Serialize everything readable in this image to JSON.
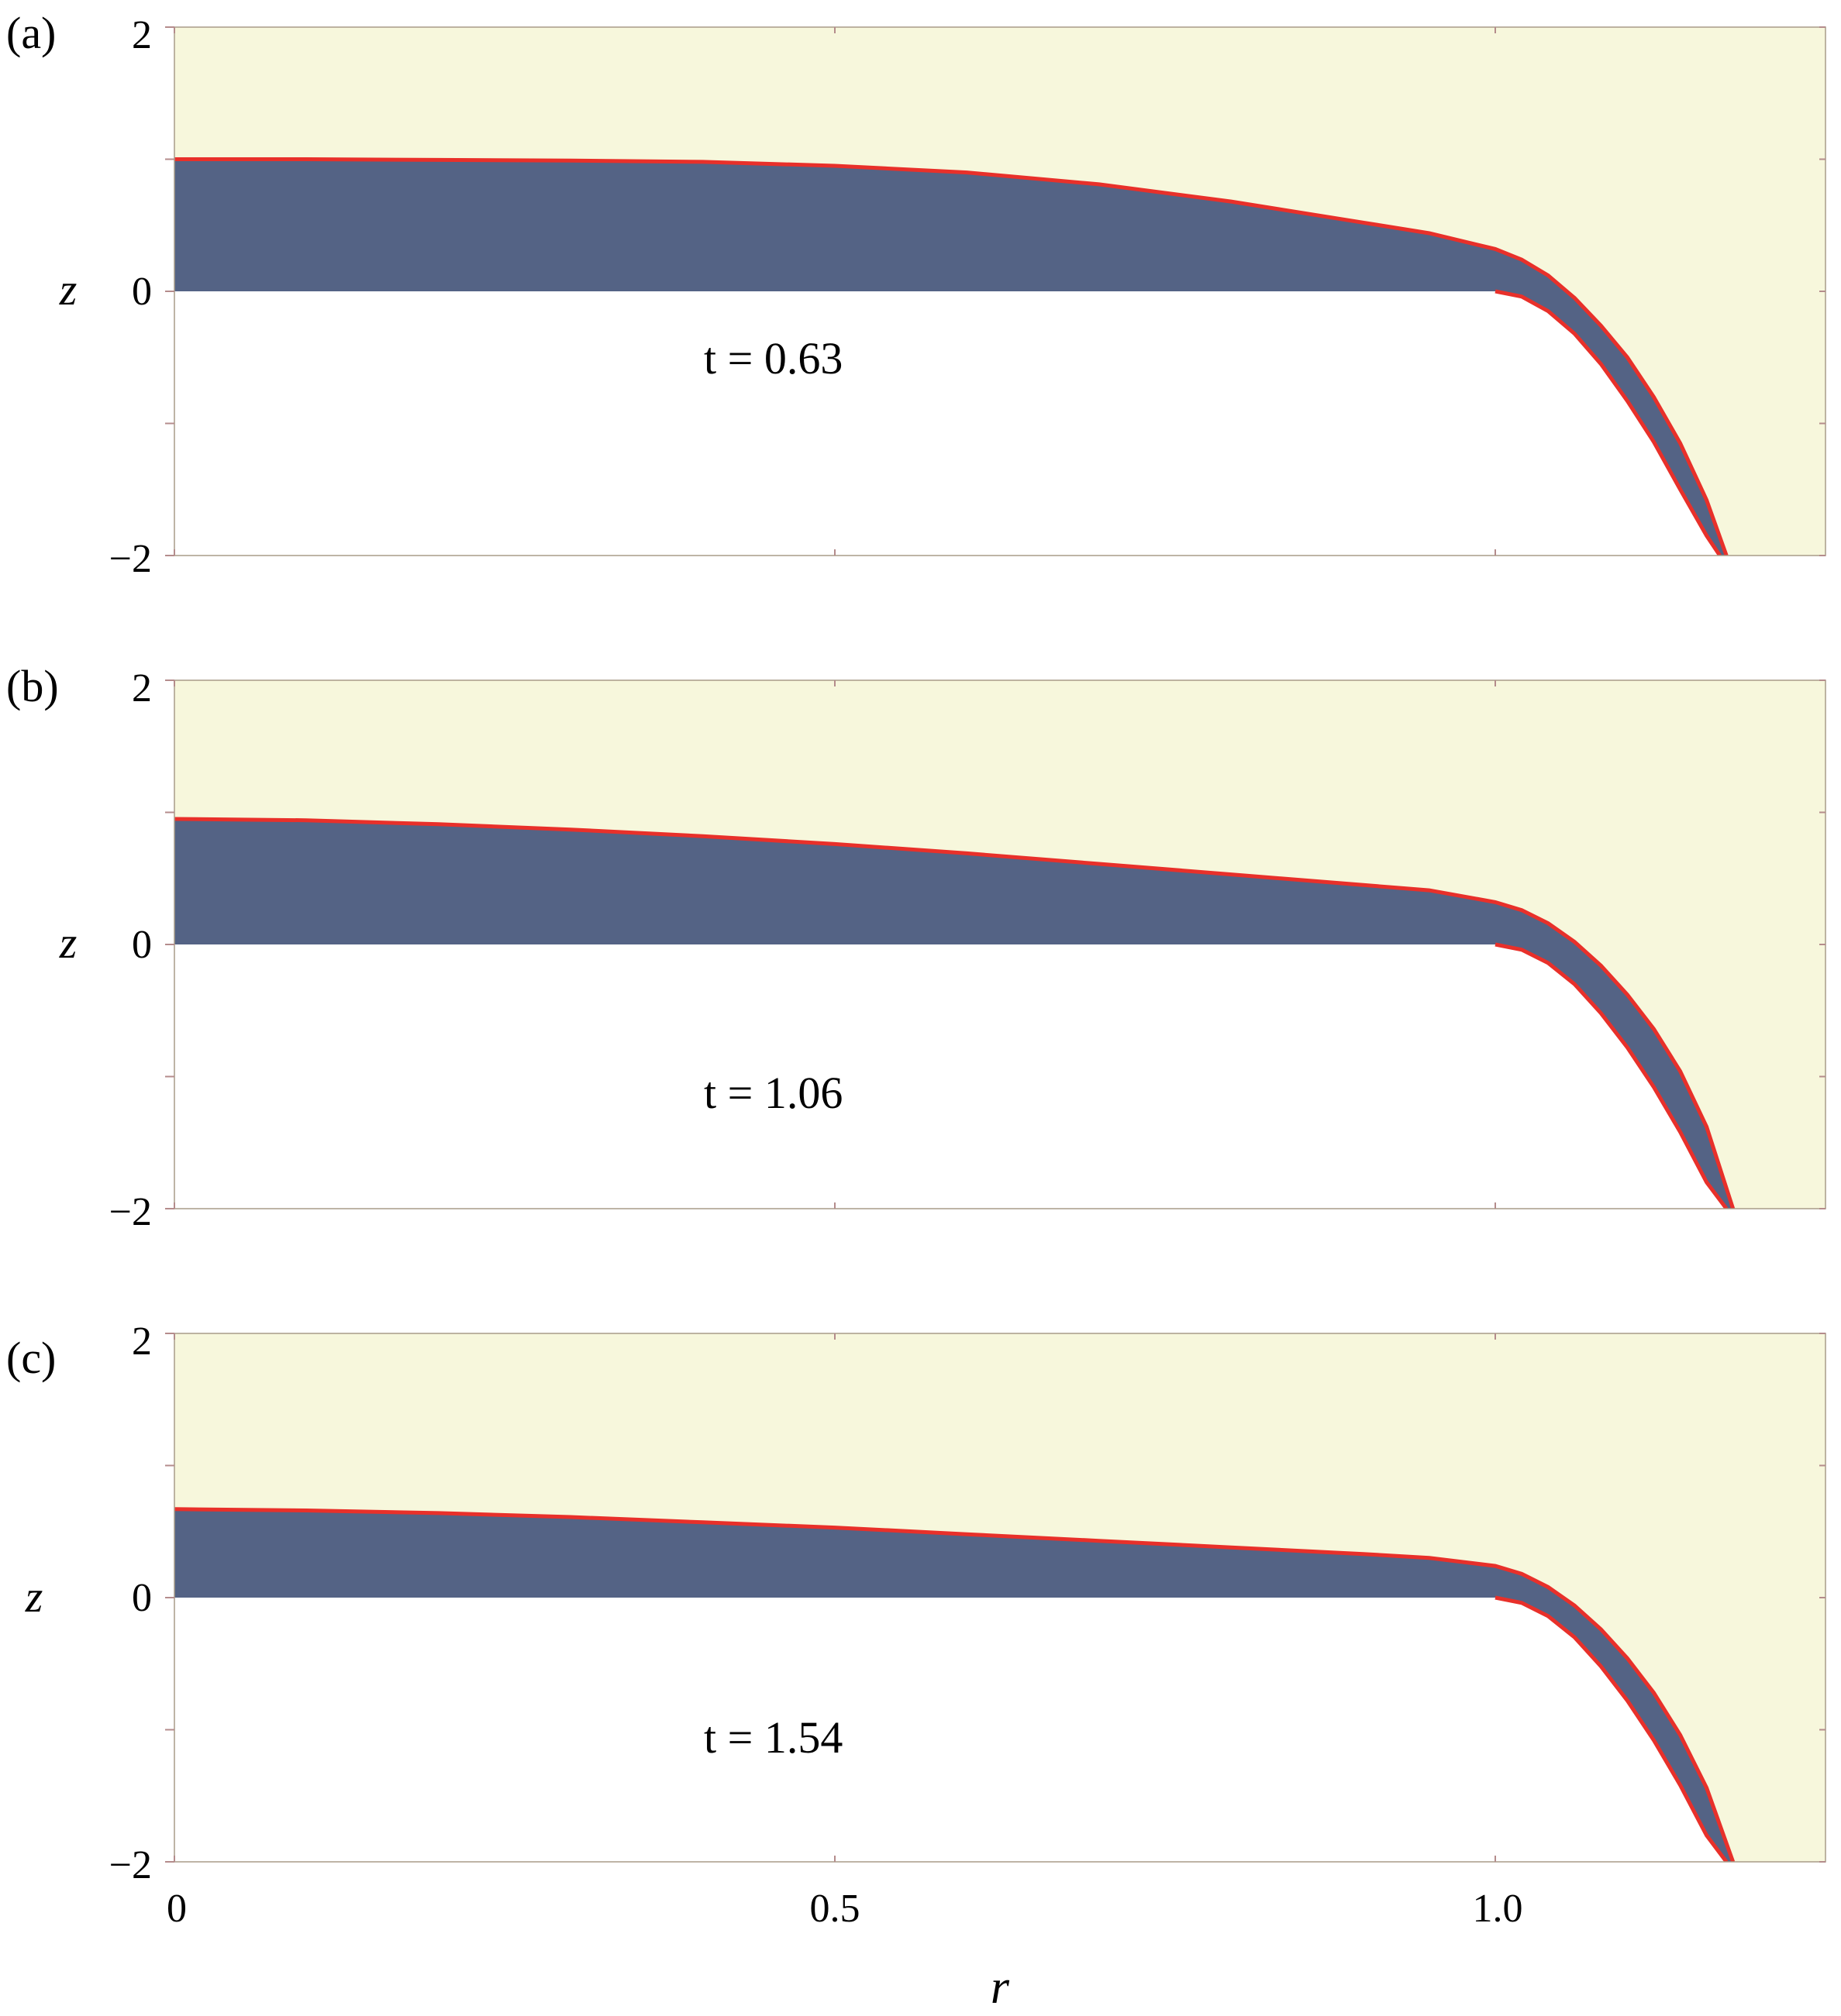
{
  "colors": {
    "air": "#f7f7dc",
    "fluid": "#546385",
    "interface": "#e8302a",
    "solid": "#ffffff",
    "frame": "#a89c88",
    "tick": "#b48c8c"
  },
  "chart_data": [
    {
      "type": "area",
      "panel_label": "(a)",
      "annotation": "t = 0.63",
      "xlabel": "r",
      "ylabel": "z",
      "xlim": [
        0,
        1.25
      ],
      "ylim": [
        -2,
        2
      ],
      "y_ticks": [
        "2",
        "0",
        "−2"
      ],
      "x_ticks": [],
      "grid": false,
      "free_surface": {
        "r": [
          0,
          0.1,
          0.2,
          0.3,
          0.4,
          0.5,
          0.6,
          0.7,
          0.8,
          0.9,
          0.95,
          1.0,
          1.02,
          1.04,
          1.06,
          1.08,
          1.1,
          1.12,
          1.14,
          1.16,
          1.175
        ],
        "z": [
          1.0,
          1.0,
          0.995,
          0.99,
          0.98,
          0.95,
          0.9,
          0.81,
          0.68,
          0.52,
          0.44,
          0.32,
          0.24,
          0.12,
          -0.05,
          -0.26,
          -0.5,
          -0.8,
          -1.15,
          -1.58,
          -2.0
        ]
      },
      "wall_wetted": {
        "r": [
          1.0,
          1.02,
          1.04,
          1.06,
          1.08,
          1.1,
          1.12,
          1.14,
          1.16,
          1.17
        ],
        "z": [
          0.0,
          -0.04,
          -0.15,
          -0.32,
          -0.55,
          -0.83,
          -1.14,
          -1.5,
          -1.85,
          -2.0
        ]
      }
    },
    {
      "type": "area",
      "panel_label": "(b)",
      "annotation": "t = 1.06",
      "xlabel": "r",
      "ylabel": "z",
      "xlim": [
        0,
        1.25
      ],
      "ylim": [
        -2,
        2
      ],
      "y_ticks": [
        "2",
        "0",
        "−2"
      ],
      "x_ticks": [],
      "grid": false,
      "free_surface": {
        "r": [
          0,
          0.1,
          0.2,
          0.3,
          0.4,
          0.5,
          0.6,
          0.7,
          0.8,
          0.9,
          0.95,
          1.0,
          1.02,
          1.04,
          1.06,
          1.08,
          1.1,
          1.12,
          1.14,
          1.16,
          1.18
        ],
        "z": [
          0.95,
          0.94,
          0.91,
          0.87,
          0.82,
          0.76,
          0.69,
          0.61,
          0.53,
          0.45,
          0.41,
          0.32,
          0.26,
          0.16,
          0.02,
          -0.16,
          -0.38,
          -0.64,
          -0.96,
          -1.38,
          -2.0
        ]
      },
      "wall_wetted": {
        "r": [
          1.0,
          1.02,
          1.04,
          1.06,
          1.08,
          1.1,
          1.12,
          1.14,
          1.16,
          1.175
        ],
        "z": [
          0.0,
          -0.04,
          -0.14,
          -0.3,
          -0.52,
          -0.78,
          -1.08,
          -1.42,
          -1.8,
          -2.0
        ]
      }
    },
    {
      "type": "area",
      "panel_label": "(c)",
      "annotation": "t = 1.54",
      "xlabel": "r",
      "ylabel": "z",
      "xlim": [
        0,
        1.25
      ],
      "ylim": [
        -2,
        2
      ],
      "y_ticks": [
        "2",
        "0",
        "−2"
      ],
      "x_ticks": [
        "0",
        "0.5",
        "1.0"
      ],
      "grid": false,
      "free_surface": {
        "r": [
          0,
          0.1,
          0.2,
          0.3,
          0.4,
          0.5,
          0.6,
          0.7,
          0.8,
          0.9,
          0.95,
          1.0,
          1.02,
          1.04,
          1.06,
          1.08,
          1.1,
          1.12,
          1.14,
          1.16,
          1.18
        ],
        "z": [
          0.67,
          0.66,
          0.64,
          0.61,
          0.57,
          0.53,
          0.48,
          0.43,
          0.38,
          0.33,
          0.3,
          0.24,
          0.18,
          0.08,
          -0.06,
          -0.24,
          -0.46,
          -0.72,
          -1.04,
          -1.44,
          -2.0
        ]
      },
      "wall_wetted": {
        "r": [
          1.0,
          1.02,
          1.04,
          1.06,
          1.08,
          1.1,
          1.12,
          1.14,
          1.16,
          1.175
        ],
        "z": [
          0.0,
          -0.04,
          -0.14,
          -0.3,
          -0.52,
          -0.78,
          -1.08,
          -1.42,
          -1.8,
          -2.0
        ]
      }
    }
  ]
}
